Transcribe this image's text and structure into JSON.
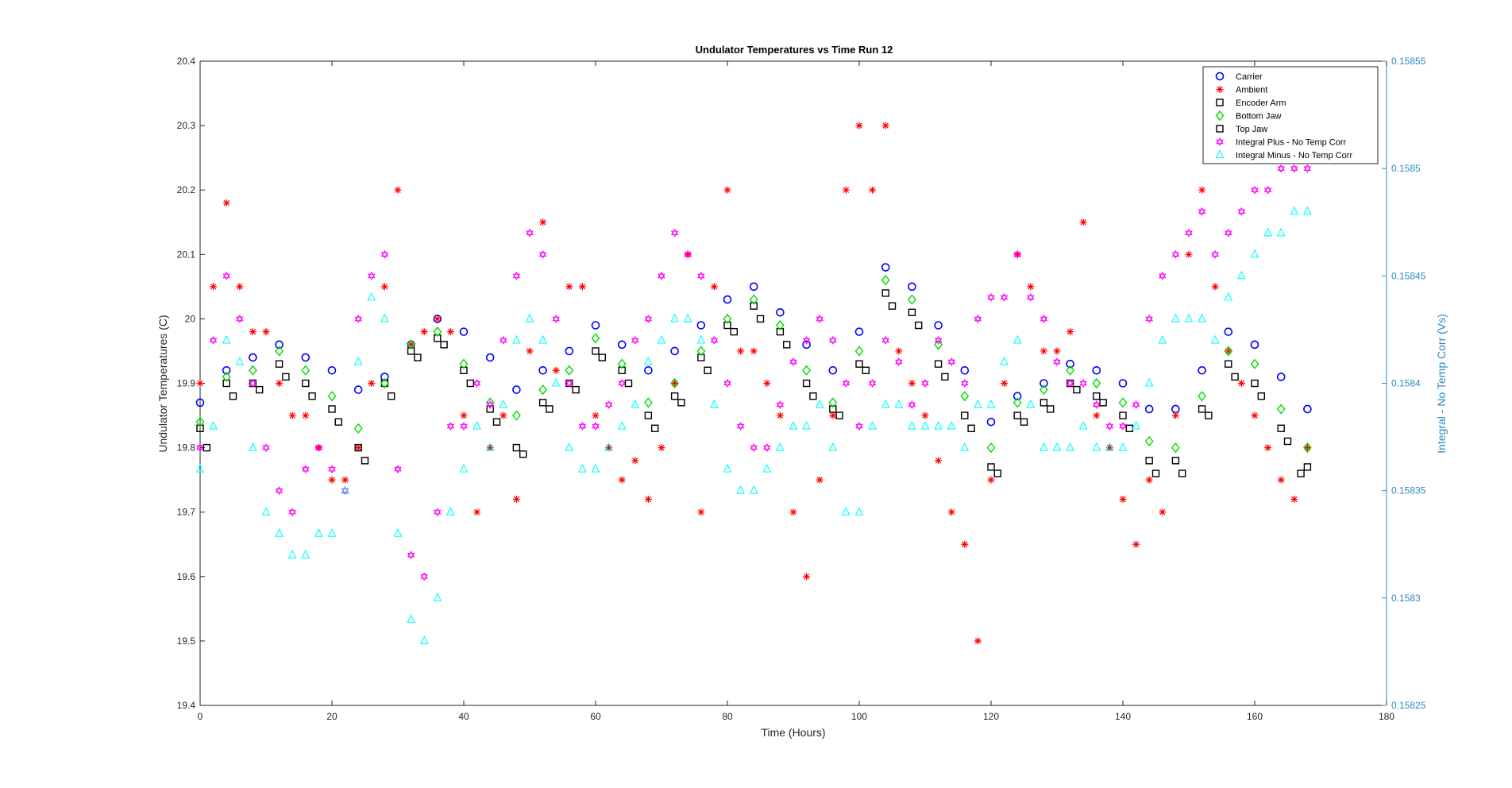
{
  "chart_data": {
    "type": "scatter",
    "title": "Undulator Temperatures vs Time Run 12",
    "xlabel": "Time (Hours)",
    "ylabel": "Undulator Temperatures (C)",
    "y2label": "Integral -  No Temp Corr (Vs)",
    "xlim": [
      0,
      180
    ],
    "ylim": [
      19.4,
      20.4
    ],
    "y2lim": [
      0.15825,
      0.15855
    ],
    "x_ticks": [
      "0",
      "20",
      "40",
      "60",
      "80",
      "100",
      "120",
      "140",
      "160",
      "180"
    ],
    "y_ticks": [
      "19.4",
      "19.5",
      "19.6",
      "19.7",
      "19.8",
      "19.9",
      "20",
      "20.1",
      "20.2",
      "20.3",
      "20.4"
    ],
    "y2_ticks": [
      "0.1582500",
      "0.15830",
      "0.1583500",
      "0.15840",
      "0.1584500",
      "0.15850",
      "0.1585500"
    ],
    "y2_tick_labels": [
      "0.15825",
      "0.1583",
      "0.15835",
      "0.1584",
      "0.15845",
      "0.1585",
      "0.15855"
    ],
    "legend_position": "top-right",
    "grid": false,
    "colors": {
      "left_axis": "#262626",
      "right_axis": "#2b8bc4"
    },
    "series": [
      {
        "name": "Carrier",
        "marker": "circle",
        "color": "#0000ff",
        "axis": "left",
        "x": [
          0,
          4,
          8,
          12,
          16,
          20,
          24,
          28,
          32,
          36,
          40,
          44,
          48,
          52,
          56,
          60,
          64,
          68,
          72,
          76,
          80,
          84,
          88,
          92,
          96,
          100,
          104,
          108,
          112,
          116,
          120,
          124,
          128,
          132,
          136,
          140,
          144,
          148,
          152,
          156,
          160,
          164,
          168
        ],
        "y": [
          19.87,
          19.92,
          19.94,
          19.96,
          19.94,
          19.92,
          19.89,
          19.91,
          19.96,
          20.0,
          19.98,
          19.94,
          19.89,
          19.92,
          19.95,
          19.99,
          19.96,
          19.92,
          19.95,
          19.99,
          20.03,
          20.05,
          20.01,
          19.96,
          19.92,
          19.98,
          20.08,
          20.05,
          19.99,
          19.92,
          19.84,
          19.88,
          19.9,
          19.93,
          19.92,
          19.9,
          19.86,
          19.86,
          19.92,
          19.98,
          19.96,
          19.91,
          19.86
        ]
      },
      {
        "name": "Ambient",
        "marker": "asterisk",
        "color": "#ff0000",
        "axis": "left",
        "x": [
          0,
          2,
          4,
          6,
          8,
          10,
          12,
          14,
          16,
          18,
          20,
          22,
          24,
          26,
          28,
          30,
          32,
          34,
          36,
          38,
          40,
          42,
          44,
          46,
          48,
          50,
          52,
          54,
          56,
          58,
          60,
          62,
          64,
          66,
          68,
          70,
          72,
          74,
          76,
          78,
          80,
          82,
          84,
          86,
          88,
          90,
          92,
          94,
          96,
          98,
          100,
          102,
          104,
          106,
          108,
          110,
          112,
          114,
          116,
          118,
          120,
          122,
          124,
          126,
          128,
          130,
          132,
          134,
          136,
          138,
          140,
          142,
          144,
          146,
          148,
          150,
          152,
          154,
          156,
          158,
          160,
          162,
          164,
          166,
          168
        ],
        "y": [
          19.9,
          20.05,
          20.18,
          20.05,
          19.98,
          19.98,
          19.9,
          19.85,
          19.85,
          19.8,
          19.75,
          19.75,
          19.8,
          19.9,
          20.05,
          20.2,
          19.96,
          19.98,
          20.0,
          19.98,
          19.85,
          19.7,
          19.8,
          19.85,
          19.72,
          19.95,
          20.15,
          19.92,
          20.05,
          20.05,
          19.85,
          19.8,
          19.75,
          19.78,
          19.72,
          19.8,
          19.9,
          20.1,
          19.7,
          20.05,
          20.2,
          19.95,
          19.95,
          19.9,
          19.85,
          19.7,
          19.6,
          19.75,
          19.85,
          20.2,
          20.3,
          20.2,
          20.3,
          19.95,
          19.9,
          19.85,
          19.78,
          19.7,
          19.65,
          19.5,
          19.75,
          19.9,
          20.1,
          20.05,
          19.95,
          19.95,
          19.98,
          20.15,
          19.85,
          19.8,
          19.72,
          19.65,
          19.75,
          19.7,
          19.85,
          20.1,
          20.2,
          20.05,
          19.95,
          19.9,
          19.85,
          19.8,
          19.75,
          19.72,
          19.8
        ]
      },
      {
        "name": "Encoder Arm",
        "marker": "square",
        "color": "#000000",
        "axis": "left",
        "x": [
          0,
          4,
          8,
          12,
          16,
          20,
          24,
          28,
          32,
          36,
          40,
          44,
          48,
          52,
          56,
          60,
          64,
          68,
          72,
          76,
          80,
          84,
          88,
          92,
          96,
          100,
          104,
          108,
          112,
          116,
          120,
          124,
          128,
          132,
          136,
          140,
          144,
          148,
          152,
          156,
          160,
          164,
          168
        ],
        "y": [
          19.83,
          19.9,
          19.9,
          19.93,
          19.9,
          19.86,
          19.8,
          19.9,
          19.95,
          19.97,
          19.92,
          19.86,
          19.8,
          19.87,
          19.9,
          19.95,
          19.92,
          19.85,
          19.88,
          19.94,
          19.99,
          20.02,
          19.98,
          19.9,
          19.86,
          19.93,
          20.04,
          20.01,
          19.93,
          19.85,
          19.77,
          19.85,
          19.87,
          19.9,
          19.88,
          19.85,
          19.78,
          19.78,
          19.86,
          19.93,
          19.9,
          19.83,
          19.77
        ]
      },
      {
        "name": "Bottom Jaw",
        "marker": "diamond",
        "color": "#00dd00",
        "axis": "left",
        "x": [
          0,
          4,
          8,
          12,
          16,
          20,
          24,
          28,
          32,
          36,
          40,
          44,
          48,
          52,
          56,
          60,
          64,
          68,
          72,
          76,
          80,
          84,
          88,
          92,
          96,
          100,
          104,
          108,
          112,
          116,
          120,
          124,
          128,
          132,
          136,
          140,
          144,
          148,
          152,
          156,
          160,
          164,
          168
        ],
        "y": [
          19.84,
          19.91,
          19.92,
          19.95,
          19.92,
          19.88,
          19.83,
          19.9,
          19.96,
          19.98,
          19.93,
          19.87,
          19.85,
          19.89,
          19.92,
          19.97,
          19.93,
          19.87,
          19.9,
          19.95,
          20.0,
          20.03,
          19.99,
          19.92,
          19.87,
          19.95,
          20.06,
          20.03,
          19.96,
          19.88,
          19.8,
          19.87,
          19.89,
          19.92,
          19.9,
          19.87,
          19.81,
          19.8,
          19.88,
          19.95,
          19.93,
          19.86,
          19.8
        ]
      },
      {
        "name": "Top Jaw",
        "marker": "square",
        "color": "#000000",
        "axis": "left",
        "x": [
          1,
          5,
          9,
          13,
          17,
          21,
          25,
          29,
          33,
          37,
          41,
          45,
          49,
          53,
          57,
          61,
          65,
          69,
          73,
          77,
          81,
          85,
          89,
          93,
          97,
          101,
          105,
          109,
          113,
          117,
          121,
          125,
          129,
          133,
          137,
          141,
          145,
          149,
          153,
          157,
          161,
          165,
          167
        ],
        "y": [
          19.8,
          19.88,
          19.89,
          19.91,
          19.88,
          19.84,
          19.78,
          19.88,
          19.94,
          19.96,
          19.9,
          19.84,
          19.79,
          19.86,
          19.89,
          19.94,
          19.9,
          19.83,
          19.87,
          19.92,
          19.98,
          20.0,
          19.96,
          19.88,
          19.85,
          19.92,
          20.02,
          19.99,
          19.91,
          19.83,
          19.76,
          19.84,
          19.86,
          19.89,
          19.87,
          19.83,
          19.76,
          19.76,
          19.85,
          19.91,
          19.88,
          19.81,
          19.76
        ]
      },
      {
        "name": "Integral Plus -  No Temp Corr",
        "marker": "hexagram",
        "color": "#ff00ff",
        "axis": "right",
        "x": [
          0,
          2,
          4,
          6,
          8,
          10,
          12,
          14,
          16,
          18,
          20,
          22,
          24,
          26,
          28,
          30,
          32,
          34,
          36,
          38,
          40,
          42,
          44,
          46,
          48,
          50,
          52,
          54,
          56,
          58,
          60,
          62,
          64,
          66,
          68,
          70,
          72,
          74,
          76,
          78,
          80,
          82,
          84,
          86,
          88,
          90,
          92,
          94,
          96,
          98,
          100,
          102,
          104,
          106,
          108,
          110,
          112,
          114,
          116,
          118,
          120,
          122,
          124,
          126,
          128,
          130,
          132,
          134,
          136,
          138,
          140,
          142,
          144,
          146,
          148,
          150,
          152,
          154,
          156,
          158,
          160,
          162,
          164,
          166,
          168
        ],
        "y": [
          0.15837,
          0.15842,
          0.15845,
          0.15843,
          0.1584,
          0.15837,
          0.15835,
          0.15834,
          0.15836,
          0.15837,
          0.15836,
          0.15835,
          0.15843,
          0.15845,
          0.15846,
          0.15836,
          0.15832,
          0.15831,
          0.15834,
          0.15838,
          0.15838,
          0.1584,
          0.15839,
          0.15842,
          0.15845,
          0.15847,
          0.15846,
          0.15843,
          0.1584,
          0.15838,
          0.15838,
          0.15839,
          0.1584,
          0.15842,
          0.15843,
          0.15845,
          0.15847,
          0.15846,
          0.15845,
          0.15842,
          0.1584,
          0.15838,
          0.15837,
          0.15837,
          0.15839,
          0.15841,
          0.15842,
          0.15843,
          0.15842,
          0.1584,
          0.15838,
          0.1584,
          0.15842,
          0.15841,
          0.15839,
          0.1584,
          0.15842,
          0.15841,
          0.1584,
          0.15843,
          0.15844,
          0.15844,
          0.15846,
          0.15844,
          0.15843,
          0.15841,
          0.1584,
          0.1584,
          0.15839,
          0.15838,
          0.15838,
          0.15839,
          0.15843,
          0.15845,
          0.15846,
          0.15847,
          0.15848,
          0.15846,
          0.15847,
          0.15848,
          0.15849,
          0.15849,
          0.1585,
          0.1585,
          0.1585
        ]
      },
      {
        "name": "Integral Minus -  No Temp Corr",
        "marker": "triangle",
        "color": "#00ffff",
        "axis": "right",
        "x": [
          0,
          2,
          4,
          6,
          8,
          10,
          12,
          14,
          16,
          18,
          20,
          22,
          24,
          26,
          28,
          30,
          32,
          34,
          36,
          38,
          40,
          42,
          44,
          46,
          48,
          50,
          52,
          54,
          56,
          58,
          60,
          62,
          64,
          66,
          68,
          70,
          72,
          74,
          76,
          78,
          80,
          82,
          84,
          86,
          88,
          90,
          92,
          94,
          96,
          98,
          100,
          102,
          104,
          106,
          108,
          110,
          112,
          114,
          116,
          118,
          120,
          122,
          124,
          126,
          128,
          130,
          132,
          134,
          136,
          138,
          140,
          142,
          144,
          146,
          148,
          150,
          152,
          154,
          156,
          158,
          160,
          162,
          164,
          166,
          168
        ],
        "y": [
          0.15836,
          0.15838,
          0.15842,
          0.15841,
          0.15837,
          0.15834,
          0.15833,
          0.15832,
          0.15832,
          0.15833,
          0.15833,
          0.15835,
          0.15841,
          0.15844,
          0.15843,
          0.15833,
          0.15829,
          0.15828,
          0.1583,
          0.15834,
          0.15836,
          0.15838,
          0.15837,
          0.15839,
          0.15842,
          0.15843,
          0.15842,
          0.1584,
          0.15837,
          0.15836,
          0.15836,
          0.15837,
          0.15838,
          0.15839,
          0.15841,
          0.15842,
          0.15843,
          0.15843,
          0.15842,
          0.15839,
          0.15836,
          0.15835,
          0.15835,
          0.15836,
          0.15837,
          0.15838,
          0.15838,
          0.15839,
          0.15837,
          0.15834,
          0.15834,
          0.15838,
          0.15839,
          0.15839,
          0.15838,
          0.15838,
          0.15838,
          0.15838,
          0.15837,
          0.15839,
          0.15839,
          0.15841,
          0.15842,
          0.15839,
          0.15837,
          0.15837,
          0.15837,
          0.15838,
          0.15837,
          0.15837,
          0.15837,
          0.15838,
          0.1584,
          0.15842,
          0.15843,
          0.15843,
          0.15843,
          0.15842,
          0.15844,
          0.15845,
          0.15846,
          0.15847,
          0.15847,
          0.15848,
          0.15848
        ]
      }
    ]
  }
}
